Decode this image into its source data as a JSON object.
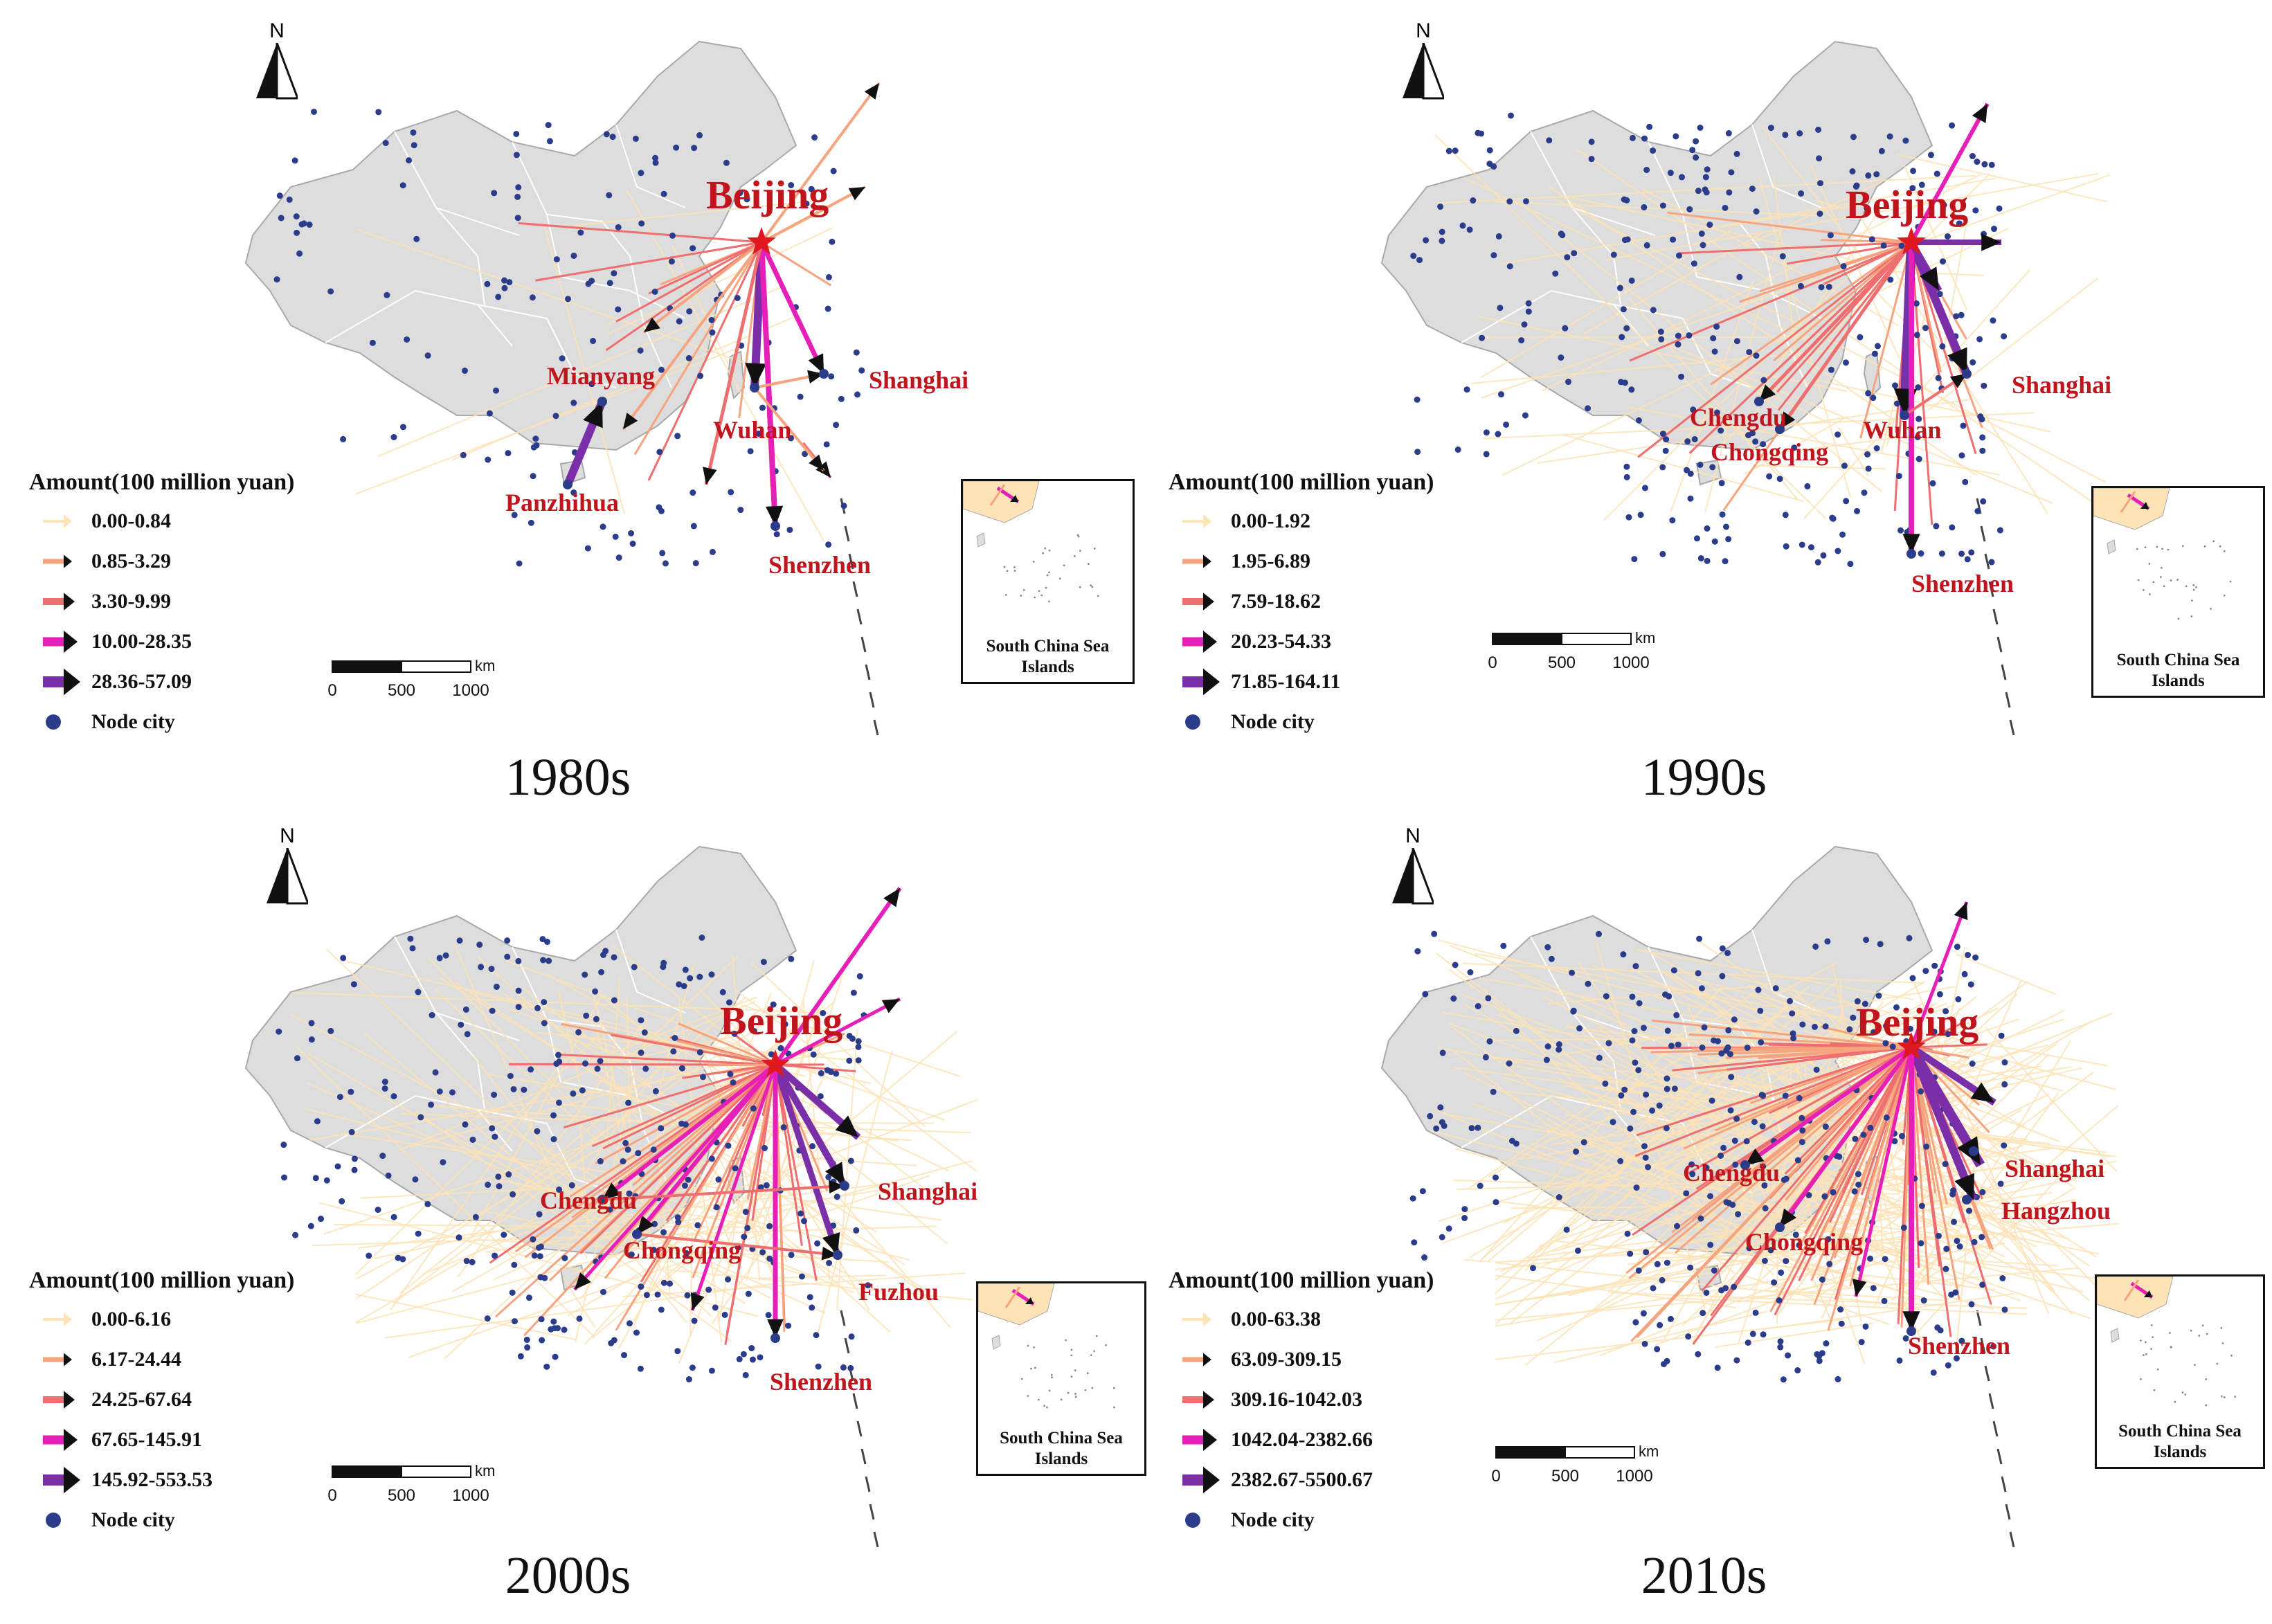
{
  "panels": [
    {
      "caption": "1980s",
      "legend_title": "Amount(100 million yuan)",
      "legend_items": [
        "0.00-0.84",
        "0.85-3.29",
        "3.30-9.99",
        "10.00-28.35",
        "28.36-57.09"
      ],
      "node_label": "Node city",
      "scale": {
        "ticks": [
          "0",
          "500",
          "1000"
        ],
        "unit": "km"
      },
      "north": "N",
      "inset_label": "South China Sea Islands",
      "capital": "Beijing",
      "cities": [
        "Mianyang",
        "Panzhihua",
        "Wuhan",
        "Shanghai",
        "Shenzhen"
      ]
    },
    {
      "caption": "1990s",
      "legend_title": "Amount(100 million yuan)",
      "legend_items": [
        "0.00-1.92",
        "1.95-6.89",
        "7.59-18.62",
        "20.23-54.33",
        "71.85-164.11"
      ],
      "node_label": "Node city",
      "scale": {
        "ticks": [
          "0",
          "500",
          "1000"
        ],
        "unit": "km"
      },
      "north": "N",
      "inset_label": "South China Sea Islands",
      "capital": "Beijing",
      "cities": [
        "Chengdu",
        "Chongqing",
        "Wuhan",
        "Shanghai",
        "Shenzhen"
      ]
    },
    {
      "caption": "2000s",
      "legend_title": "Amount(100 million yuan)",
      "legend_items": [
        "0.00-6.16",
        "6.17-24.44",
        "24.25-67.64",
        "67.65-145.91",
        "145.92-553.53"
      ],
      "node_label": "Node city",
      "scale": {
        "ticks": [
          "0",
          "500",
          "1000"
        ],
        "unit": "km"
      },
      "north": "N",
      "inset_label": "South China Sea Islands",
      "capital": "Beijing",
      "cities": [
        "Chengdu",
        "Chongqing",
        "Shanghai",
        "Fuzhou",
        "Shenzhen"
      ]
    },
    {
      "caption": "2010s",
      "legend_title": "Amount(100 million yuan)",
      "legend_items": [
        "0.00-63.38",
        "63.09-309.15",
        "309.16-1042.03",
        "1042.04-2382.66",
        "2382.67-5500.67"
      ],
      "node_label": "Node city",
      "scale": {
        "ticks": [
          "0",
          "500",
          "1000"
        ],
        "unit": "km"
      },
      "north": "N",
      "inset_label": "South China Sea Islands",
      "capital": "Beijing",
      "cities": [
        "Chengdu",
        "Chongqing",
        "Shanghai",
        "Hangzhou",
        "Shenzhen"
      ]
    }
  ],
  "colors": {
    "land": "#dddddd",
    "border": "#a9a9a9",
    "flow_class_1": "#fde3b6",
    "flow_class_2": "#f6a47e",
    "flow_class_3": "#ee6f6f",
    "flow_class_4": "#e61fb8",
    "flow_class_5": "#7a2ea8",
    "node": "#2b3d8a",
    "city_label": "#c0151d",
    "capital_star": "#e0181f"
  }
}
